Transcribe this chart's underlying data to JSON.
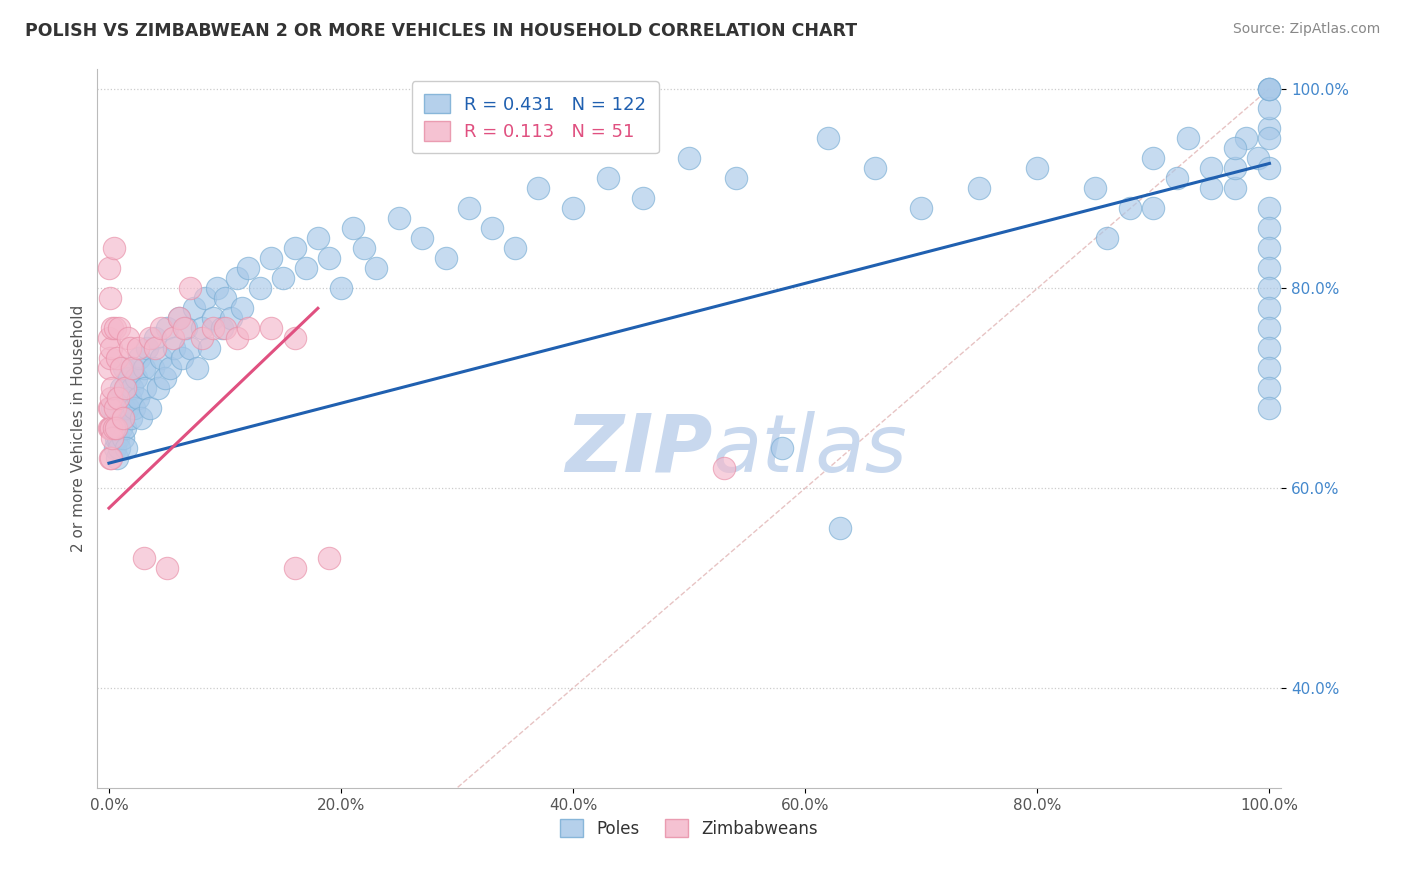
{
  "title": "POLISH VS ZIMBABWEAN 2 OR MORE VEHICLES IN HOUSEHOLD CORRELATION CHART",
  "source": "Source: ZipAtlas.com",
  "ylabel": "2 or more Vehicles in Household",
  "poles_R": 0.431,
  "poles_N": 122,
  "zim_R": 0.113,
  "zim_N": 51,
  "blue_color": "#a8c8e8",
  "blue_edge_color": "#7aaed4",
  "pink_color": "#f4b8cb",
  "pink_edge_color": "#e890a8",
  "blue_line_color": "#2060b0",
  "pink_line_color": "#e05080",
  "ref_line_color": "#ddaaaa",
  "legend_label_poles": "Poles",
  "legend_label_zim": "Zimbabweans",
  "watermark_color": "#c8d8ee",
  "blue_tick_color": "#4488cc",
  "xmin": 0.0,
  "xmax": 1.0,
  "ymin": 0.3,
  "ymax": 1.02,
  "blue_trend_x0": 0.0,
  "blue_trend_y0": 0.625,
  "blue_trend_x1": 1.0,
  "blue_trend_y1": 0.925,
  "pink_trend_x0": 0.0,
  "pink_trend_y0": 0.58,
  "pink_trend_x1": 0.18,
  "pink_trend_y1": 0.78,
  "poles_x": [
    0.003,
    0.004,
    0.005,
    0.005,
    0.006,
    0.007,
    0.007,
    0.008,
    0.008,
    0.009,
    0.009,
    0.01,
    0.01,
    0.011,
    0.012,
    0.013,
    0.013,
    0.014,
    0.015,
    0.015,
    0.016,
    0.017,
    0.018,
    0.019,
    0.02,
    0.021,
    0.022,
    0.023,
    0.025,
    0.026,
    0.028,
    0.03,
    0.031,
    0.033,
    0.035,
    0.038,
    0.04,
    0.042,
    0.045,
    0.048,
    0.05,
    0.053,
    0.056,
    0.06,
    0.063,
    0.066,
    0.07,
    0.073,
    0.076,
    0.08,
    0.083,
    0.086,
    0.09,
    0.093,
    0.097,
    0.1,
    0.105,
    0.11,
    0.115,
    0.12,
    0.13,
    0.14,
    0.15,
    0.16,
    0.17,
    0.18,
    0.19,
    0.2,
    0.21,
    0.22,
    0.23,
    0.25,
    0.27,
    0.29,
    0.31,
    0.33,
    0.35,
    0.37,
    0.4,
    0.43,
    0.46,
    0.5,
    0.54,
    0.58,
    0.62,
    0.63,
    0.66,
    0.7,
    0.75,
    0.8,
    0.85,
    0.88,
    0.9,
    0.92,
    0.93,
    0.95,
    0.97,
    0.98,
    0.99,
    1.0,
    0.86,
    0.9,
    0.95,
    0.97,
    0.97,
    1.0,
    1.0,
    1.0,
    1.0,
    1.0,
    1.0,
    1.0,
    1.0,
    1.0,
    1.0,
    1.0,
    1.0,
    1.0,
    1.0,
    1.0,
    1.0,
    1.0
  ],
  "poles_y": [
    0.68,
    0.66,
    0.64,
    0.67,
    0.65,
    0.63,
    0.66,
    0.65,
    0.68,
    0.64,
    0.69,
    0.66,
    0.7,
    0.67,
    0.65,
    0.68,
    0.72,
    0.66,
    0.7,
    0.64,
    0.68,
    0.71,
    0.69,
    0.67,
    0.7,
    0.72,
    0.68,
    0.71,
    0.69,
    0.73,
    0.67,
    0.72,
    0.7,
    0.74,
    0.68,
    0.72,
    0.75,
    0.7,
    0.73,
    0.71,
    0.76,
    0.72,
    0.74,
    0.77,
    0.73,
    0.76,
    0.74,
    0.78,
    0.72,
    0.76,
    0.79,
    0.74,
    0.77,
    0.8,
    0.76,
    0.79,
    0.77,
    0.81,
    0.78,
    0.82,
    0.8,
    0.83,
    0.81,
    0.84,
    0.82,
    0.85,
    0.83,
    0.8,
    0.86,
    0.84,
    0.82,
    0.87,
    0.85,
    0.83,
    0.88,
    0.86,
    0.84,
    0.9,
    0.88,
    0.91,
    0.89,
    0.93,
    0.91,
    0.64,
    0.95,
    0.56,
    0.92,
    0.88,
    0.9,
    0.92,
    0.9,
    0.88,
    0.93,
    0.91,
    0.95,
    0.92,
    0.9,
    0.95,
    0.93,
    1.0,
    0.85,
    0.88,
    0.9,
    0.92,
    0.94,
    0.96,
    0.98,
    1.0,
    1.0,
    0.95,
    0.92,
    0.88,
    0.86,
    0.84,
    0.82,
    0.8,
    0.78,
    0.76,
    0.74,
    0.72,
    0.7,
    0.68
  ],
  "zim_x": [
    0.0,
    0.0,
    0.0,
    0.0,
    0.0,
    0.001,
    0.001,
    0.001,
    0.001,
    0.001,
    0.002,
    0.002,
    0.002,
    0.002,
    0.003,
    0.003,
    0.003,
    0.004,
    0.004,
    0.005,
    0.005,
    0.006,
    0.007,
    0.008,
    0.009,
    0.01,
    0.012,
    0.014,
    0.016,
    0.018,
    0.02,
    0.025,
    0.03,
    0.035,
    0.04,
    0.045,
    0.05,
    0.055,
    0.06,
    0.065,
    0.07,
    0.08,
    0.09,
    0.1,
    0.11,
    0.12,
    0.14,
    0.16,
    0.16,
    0.19,
    0.53
  ],
  "zim_y": [
    0.66,
    0.68,
    0.72,
    0.75,
    0.82,
    0.63,
    0.66,
    0.68,
    0.73,
    0.79,
    0.63,
    0.66,
    0.69,
    0.74,
    0.65,
    0.7,
    0.76,
    0.66,
    0.84,
    0.68,
    0.76,
    0.66,
    0.73,
    0.69,
    0.76,
    0.72,
    0.67,
    0.7,
    0.75,
    0.74,
    0.72,
    0.74,
    0.53,
    0.75,
    0.74,
    0.76,
    0.52,
    0.75,
    0.77,
    0.76,
    0.8,
    0.75,
    0.76,
    0.76,
    0.75,
    0.76,
    0.76,
    0.75,
    0.52,
    0.53,
    0.62
  ]
}
